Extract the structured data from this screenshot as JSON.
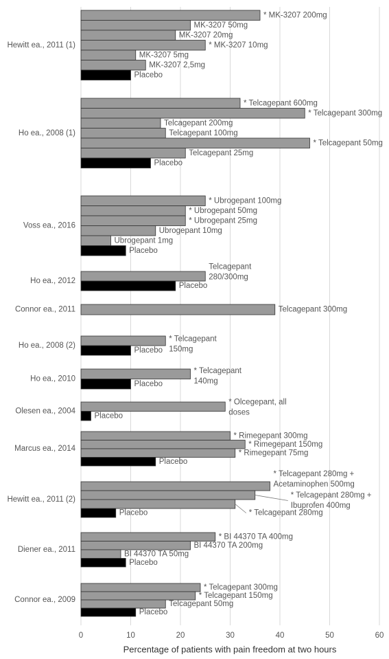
{
  "chart_data": {
    "type": "grouped-bar",
    "x_label": "Percentage of patients with pain freedom at two hours",
    "xlim": [
      0,
      60
    ],
    "xticks": [
      0,
      10,
      20,
      30,
      40,
      50,
      60
    ],
    "grid": true,
    "groups": [
      {
        "name": "Hewitt ea., 2011 (1)",
        "bars": [
          {
            "label": "* MK-3207 200mg",
            "value": 36,
            "color": "#9a9a9a"
          },
          {
            "label": "MK-3207 50mg",
            "value": 22,
            "color": "#9a9a9a"
          },
          {
            "label": "MK-3207 20mg",
            "value": 19,
            "color": "#9a9a9a"
          },
          {
            "label": "* MK-3207 10mg",
            "value": 25,
            "color": "#9a9a9a"
          },
          {
            "label": "MK-3207 5mg",
            "value": 11,
            "color": "#9a9a9a"
          },
          {
            "label": "MK-3207 2,5mg",
            "value": 13,
            "color": "#9a9a9a"
          },
          {
            "label": "Placebo",
            "value": 10,
            "color": "#000000"
          }
        ]
      },
      {
        "name": "Ho ea., 2008 (1)",
        "bars": [
          {
            "label": "* Telcagepant 600mg",
            "value": 32,
            "color": "#9a9a9a"
          },
          {
            "label": "* Telcagepant 300mg",
            "value": 45,
            "color": "#9a9a9a"
          },
          {
            "label": "Telcagepant 200mg",
            "value": 16,
            "color": "#9a9a9a"
          },
          {
            "label": "Telcagepant 100mg",
            "value": 17,
            "color": "#9a9a9a"
          },
          {
            "label": "* Telcagepant 50mg",
            "value": 46,
            "color": "#9a9a9a"
          },
          {
            "label": "Telcagepant 25mg",
            "value": 21,
            "color": "#9a9a9a"
          },
          {
            "label": "Placebo",
            "value": 14,
            "color": "#000000"
          }
        ]
      },
      {
        "name": "Voss ea., 2016",
        "bars": [
          {
            "label": "* Ubrogepant 100mg",
            "value": 25,
            "color": "#9a9a9a"
          },
          {
            "label": "* Ubrogepant 50mg",
            "value": 21,
            "color": "#9a9a9a"
          },
          {
            "label": "* Ubrogepant 25mg",
            "value": 21,
            "color": "#9a9a9a"
          },
          {
            "label": "Ubrogepant 10mg",
            "value": 15,
            "color": "#9a9a9a"
          },
          {
            "label": "Ubrogepant 1mg",
            "value": 6,
            "color": "#9a9a9a"
          },
          {
            "label": "Placebo",
            "value": 9,
            "color": "#000000"
          }
        ]
      },
      {
        "name": "Ho ea., 2012",
        "bars": [
          {
            "label": "Telcagepant\n280/300mg",
            "value": 25,
            "color": "#9a9a9a"
          },
          {
            "label": "Placebo",
            "value": 19,
            "color": "#000000"
          }
        ]
      },
      {
        "name": "Connor ea., 2011",
        "bars": [
          {
            "label": "Telcagepant 300mg",
            "value": 39,
            "color": "#9a9a9a"
          }
        ]
      },
      {
        "name": "Ho ea., 2008 (2)",
        "bars": [
          {
            "label": "* Telcagepant\n150mg",
            "value": 17,
            "color": "#9a9a9a"
          },
          {
            "label": "Placebo",
            "value": 10,
            "color": "#000000"
          }
        ]
      },
      {
        "name": "Ho ea., 2010",
        "bars": [
          {
            "label": "* Telcagepant\n140mg",
            "value": 22,
            "color": "#9a9a9a"
          },
          {
            "label": "Placebo",
            "value": 10,
            "color": "#000000"
          }
        ]
      },
      {
        "name": "Olesen ea., 2004",
        "bars": [
          {
            "label": "* Olcegepant, all\ndoses",
            "value": 29,
            "color": "#9a9a9a"
          },
          {
            "label": "Placebo",
            "value": 2,
            "color": "#000000"
          }
        ]
      },
      {
        "name": "Marcus ea., 2014",
        "bars": [
          {
            "label": "* Rimegepant 300mg",
            "value": 30,
            "color": "#9a9a9a"
          },
          {
            "label": "* Rimegepant 150mg",
            "value": 33,
            "color": "#9a9a9a"
          },
          {
            "label": "* Rimegepant 75mg",
            "value": 31,
            "color": "#9a9a9a"
          },
          {
            "label": "Placebo",
            "value": 15,
            "color": "#000000"
          }
        ]
      },
      {
        "name": "Hewitt ea., 2011 (2)",
        "bars": [
          {
            "label": "* Telcagepant 280mg +\nAcetaminophen 500mg",
            "value": 38,
            "color": "#9a9a9a"
          },
          {
            "label": "* Telcagepant 280mg +\nIbuprofen 400mg",
            "value": 35,
            "color": "#9a9a9a"
          },
          {
            "label": "* Telcagepant 280mg",
            "value": 31,
            "color": "#9a9a9a"
          },
          {
            "label": "Placebo",
            "value": 7,
            "color": "#000000"
          }
        ]
      },
      {
        "name": "Diener ea., 2011",
        "bars": [
          {
            "label": "* BI 44370 TA 400mg",
            "value": 27,
            "color": "#9a9a9a"
          },
          {
            "label": "BI 44370 TA 200mg",
            "value": 22,
            "color": "#9a9a9a"
          },
          {
            "label": "BI 44370 TA 50mg",
            "value": 8,
            "color": "#9a9a9a"
          },
          {
            "label": "Placebo",
            "value": 9,
            "color": "#000000"
          }
        ]
      },
      {
        "name": "Connor ea., 2009",
        "bars": [
          {
            "label": "* Telcagepant 300mg",
            "value": 24,
            "color": "#9a9a9a"
          },
          {
            "label": "* Telcagepant 150mg",
            "value": 23,
            "color": "#9a9a9a"
          },
          {
            "label": "Telcagepant 50mg",
            "value": 17,
            "color": "#9a9a9a"
          },
          {
            "label": "Placebo",
            "value": 11,
            "color": "#000000"
          }
        ]
      }
    ]
  }
}
